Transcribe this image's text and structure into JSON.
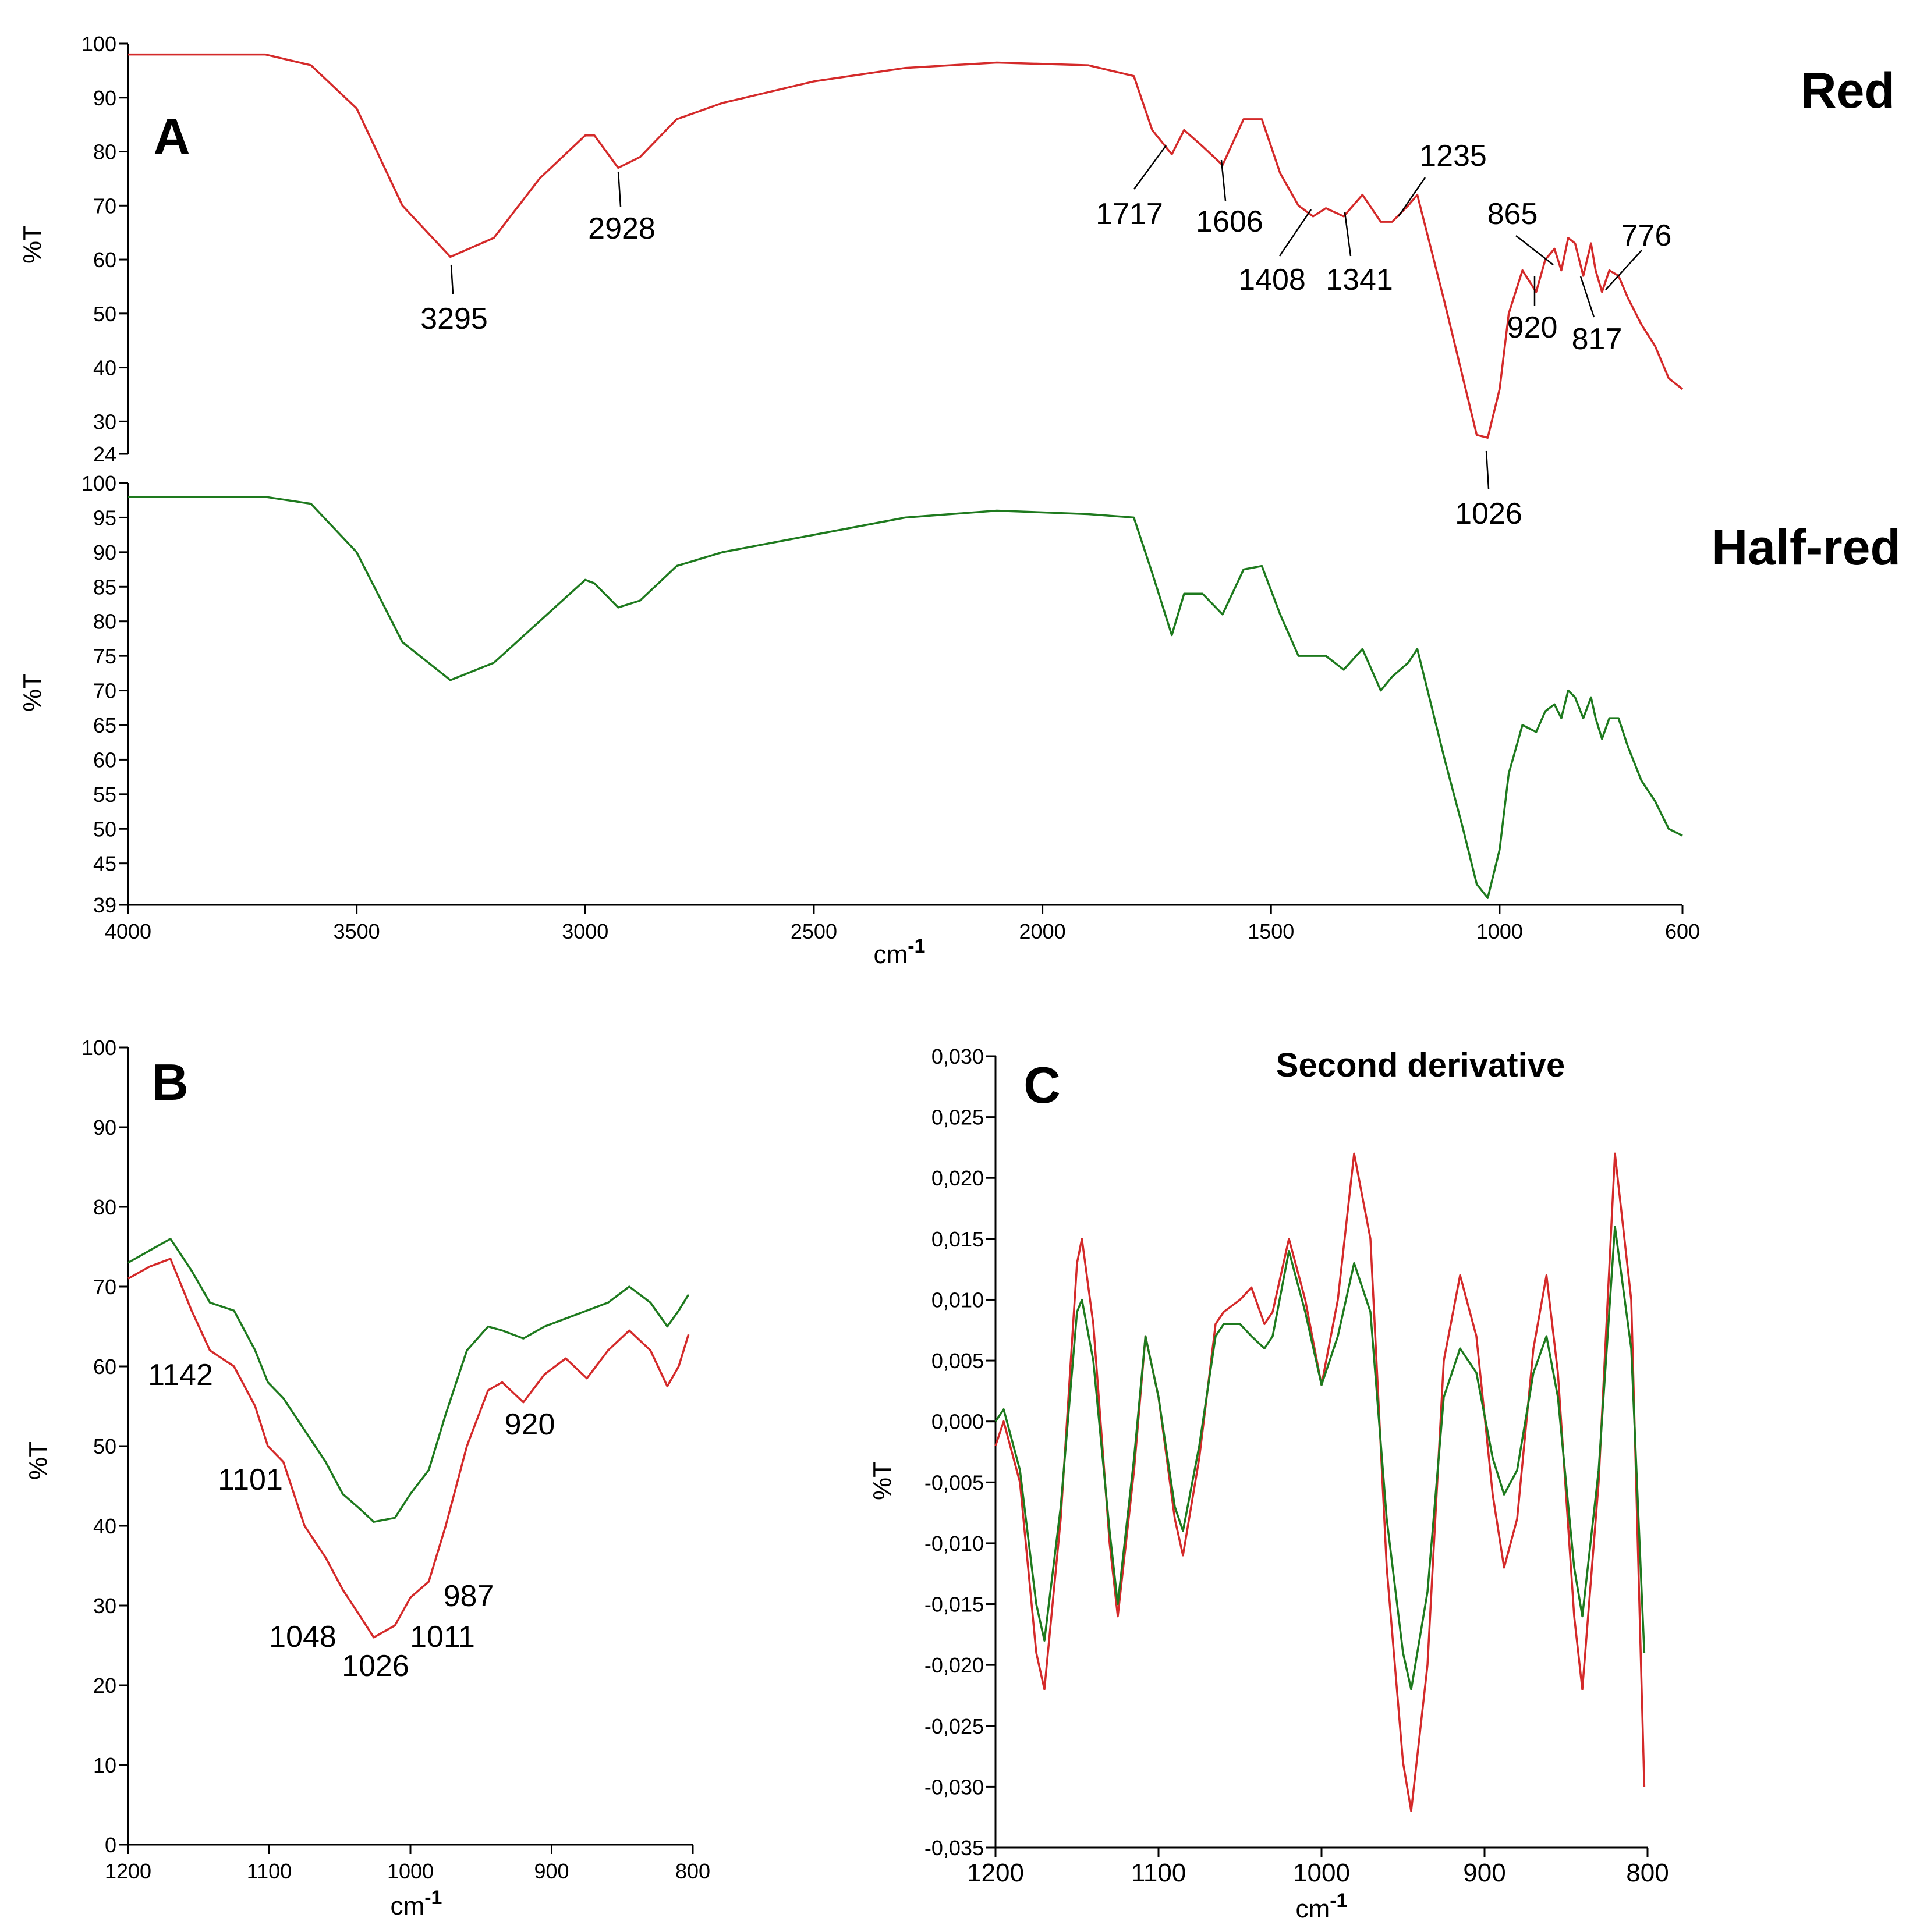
{
  "colors": {
    "red": "#d42a2a",
    "green": "#1e7a1e",
    "axis": "#000000"
  },
  "chart_data": [
    {
      "id": "A-red",
      "type": "line",
      "panel_label": "A",
      "sample_label": "Red",
      "ylabel": "%T",
      "ylim": [
        24,
        100
      ],
      "yticks": [
        "24",
        "30",
        "40",
        "50",
        "60",
        "70",
        "80",
        "90",
        "100"
      ],
      "xlim": [
        4000,
        600
      ],
      "series": [
        {
          "name": "Red",
          "color": "red",
          "x": [
            4000,
            3700,
            3600,
            3500,
            3400,
            3295,
            3200,
            3100,
            3000,
            2980,
            2928,
            2880,
            2800,
            2700,
            2500,
            2300,
            2100,
            1900,
            1800,
            1760,
            1717,
            1690,
            1650,
            1606,
            1560,
            1520,
            1480,
            1440,
            1408,
            1380,
            1341,
            1300,
            1260,
            1235,
            1200,
            1180,
            1150,
            1120,
            1080,
            1050,
            1026,
            1000,
            980,
            950,
            920,
            900,
            880,
            865,
            850,
            835,
            817,
            800,
            790,
            776,
            760,
            740,
            720,
            690,
            660,
            630,
            600
          ],
          "y": [
            98,
            98,
            96,
            88,
            70,
            60.5,
            64,
            75,
            83,
            83,
            77,
            79,
            86,
            89,
            93,
            95.5,
            96.5,
            96,
            94,
            84,
            79.5,
            84,
            81,
            77.5,
            86,
            86,
            76,
            70,
            68,
            69.5,
            68,
            72,
            67,
            67,
            70,
            72,
            62,
            52,
            38,
            27.5,
            27,
            36,
            50,
            58,
            54,
            60,
            62,
            58,
            64,
            63,
            57,
            63,
            58,
            54,
            58,
            57,
            53,
            48,
            44,
            38,
            36
          ]
        }
      ],
      "annotations": [
        "3295",
        "2928",
        "1717",
        "1606",
        "1408",
        "1341",
        "1235",
        "1026",
        "865",
        "920",
        "817",
        "776"
      ]
    },
    {
      "id": "A-halfred",
      "type": "line",
      "sample_label": "Half-red",
      "ylabel": "%T",
      "xlabel": "cm",
      "xlabel_sup": "-1",
      "ylim": [
        39,
        100
      ],
      "yticks": [
        "39",
        "45",
        "50",
        "55",
        "60",
        "65",
        "70",
        "75",
        "80",
        "85",
        "90",
        "95",
        "100"
      ],
      "xlim": [
        4000,
        600
      ],
      "xticks": [
        "4000",
        "3500",
        "3000",
        "2500",
        "2000",
        "1500",
        "1000",
        "600"
      ],
      "series": [
        {
          "name": "Half-red",
          "color": "green",
          "x": [
            4000,
            3700,
            3600,
            3500,
            3400,
            3295,
            3200,
            3100,
            3000,
            2980,
            2928,
            2880,
            2800,
            2700,
            2500,
            2300,
            2100,
            1900,
            1800,
            1760,
            1717,
            1690,
            1650,
            1606,
            1560,
            1520,
            1480,
            1440,
            1408,
            1380,
            1341,
            1300,
            1260,
            1235,
            1200,
            1180,
            1150,
            1120,
            1080,
            1050,
            1026,
            1000,
            980,
            950,
            920,
            900,
            880,
            865,
            850,
            835,
            817,
            800,
            790,
            776,
            760,
            740,
            720,
            690,
            660,
            630,
            600
          ],
          "y": [
            98,
            98,
            97,
            90,
            77,
            71.5,
            74,
            80,
            86,
            85.5,
            82,
            83,
            88,
            90,
            92.5,
            95,
            96,
            95.5,
            95,
            87,
            78,
            84,
            84,
            81,
            87.5,
            88,
            81,
            75,
            75,
            75,
            73,
            76,
            70,
            72,
            74,
            76,
            68,
            60,
            50,
            42,
            40,
            47,
            58,
            65,
            64,
            67,
            68,
            66,
            70,
            69,
            66,
            69,
            66,
            63,
            66,
            66,
            62,
            57,
            54,
            50,
            49
          ]
        }
      ]
    },
    {
      "id": "B",
      "type": "line",
      "panel_label": "B",
      "ylabel": "%T",
      "xlabel": "cm",
      "xlabel_sup": "-1",
      "ylim": [
        0,
        100
      ],
      "yticks": [
        "0",
        "10",
        "20",
        "30",
        "40",
        "50",
        "60",
        "70",
        "80",
        "90",
        "100"
      ],
      "xlim": [
        1200,
        800
      ],
      "xticks": [
        "1200",
        "1100",
        "1000",
        "900",
        "800"
      ],
      "series": [
        {
          "name": "Half-red",
          "color": "green",
          "x": [
            1200,
            1185,
            1170,
            1155,
            1142,
            1125,
            1110,
            1101,
            1090,
            1075,
            1060,
            1048,
            1035,
            1026,
            1011,
            1000,
            987,
            975,
            960,
            945,
            935,
            920,
            905,
            890,
            875,
            860,
            845,
            830,
            818,
            810,
            803
          ],
          "y": [
            73,
            74.5,
            76,
            72,
            68,
            67,
            62,
            58,
            56,
            52,
            48,
            44,
            42,
            40.5,
            41,
            44,
            47,
            54,
            62,
            65,
            64.5,
            63.5,
            65,
            66,
            67,
            68,
            70,
            68,
            65,
            67,
            69
          ]
        },
        {
          "name": "Red",
          "color": "red",
          "x": [
            1200,
            1185,
            1170,
            1155,
            1142,
            1125,
            1110,
            1101,
            1090,
            1075,
            1060,
            1048,
            1035,
            1026,
            1011,
            1000,
            987,
            975,
            960,
            945,
            935,
            920,
            905,
            890,
            875,
            860,
            845,
            830,
            818,
            810,
            803
          ],
          "y": [
            71,
            72.5,
            73.5,
            67,
            62,
            60,
            55,
            50,
            48,
            40,
            36,
            32,
            28.5,
            26,
            27.5,
            31,
            33,
            40,
            50,
            57,
            58,
            55.5,
            59,
            61,
            58.5,
            62,
            64.5,
            62,
            57.5,
            60,
            64
          ]
        }
      ],
      "annotations": [
        "1142",
        "1101",
        "920",
        "987",
        "1011",
        "1048",
        "1026"
      ]
    },
    {
      "id": "C",
      "type": "line",
      "panel_label": "C",
      "title": "Second derivative",
      "ylabel": "%T",
      "xlabel": "cm",
      "xlabel_sup": "-1",
      "ylim": [
        -0.035,
        0.03
      ],
      "yticks": [
        "-0,035",
        "-0,030",
        "-0,025",
        "-0,020",
        "-0,015",
        "-0,010",
        "-0,005",
        "0,000",
        "0,005",
        "0,010",
        "0,015",
        "0,020",
        "0,025",
        "0,030"
      ],
      "xlim": [
        1200,
        800
      ],
      "xticks": [
        "1200",
        "1100",
        "1000",
        "900",
        "800"
      ],
      "series": [
        {
          "name": "Red",
          "color": "red",
          "x": [
            1200,
            1195,
            1185,
            1175,
            1170,
            1160,
            1150,
            1147,
            1140,
            1130,
            1125,
            1115,
            1108,
            1100,
            1090,
            1085,
            1075,
            1065,
            1060,
            1050,
            1043,
            1035,
            1030,
            1020,
            1010,
            1000,
            990,
            980,
            970,
            960,
            950,
            945,
            935,
            925,
            915,
            905,
            895,
            888,
            880,
            870,
            862,
            855,
            845,
            840,
            830,
            820,
            810,
            802
          ],
          "y": [
            -0.002,
            0.0,
            -0.005,
            -0.019,
            -0.022,
            -0.008,
            0.013,
            0.015,
            0.008,
            -0.01,
            -0.016,
            -0.004,
            0.007,
            0.002,
            -0.008,
            -0.011,
            -0.003,
            0.008,
            0.009,
            0.01,
            0.011,
            0.008,
            0.009,
            0.015,
            0.01,
            0.003,
            0.01,
            0.022,
            0.015,
            -0.012,
            -0.028,
            -0.032,
            -0.02,
            0.005,
            0.012,
            0.007,
            -0.006,
            -0.012,
            -0.008,
            0.006,
            0.012,
            0.004,
            -0.016,
            -0.022,
            -0.005,
            0.022,
            0.01,
            -0.03
          ]
        },
        {
          "name": "Half-red",
          "color": "green",
          "x": [
            1200,
            1195,
            1185,
            1175,
            1170,
            1160,
            1150,
            1147,
            1140,
            1130,
            1125,
            1115,
            1108,
            1100,
            1090,
            1085,
            1075,
            1065,
            1060,
            1050,
            1043,
            1035,
            1030,
            1020,
            1010,
            1000,
            990,
            980,
            970,
            960,
            950,
            945,
            935,
            925,
            915,
            905,
            895,
            888,
            880,
            870,
            862,
            855,
            845,
            840,
            830,
            820,
            810,
            802
          ],
          "y": [
            0.0,
            0.001,
            -0.004,
            -0.015,
            -0.018,
            -0.007,
            0.009,
            0.01,
            0.005,
            -0.009,
            -0.015,
            -0.003,
            0.007,
            0.002,
            -0.007,
            -0.009,
            -0.002,
            0.007,
            0.008,
            0.008,
            0.007,
            0.006,
            0.007,
            0.014,
            0.009,
            0.003,
            0.007,
            0.013,
            0.009,
            -0.008,
            -0.019,
            -0.022,
            -0.014,
            0.002,
            0.006,
            0.004,
            -0.003,
            -0.006,
            -0.004,
            0.004,
            0.007,
            0.002,
            -0.012,
            -0.016,
            -0.004,
            0.016,
            0.006,
            -0.019
          ]
        }
      ]
    }
  ]
}
